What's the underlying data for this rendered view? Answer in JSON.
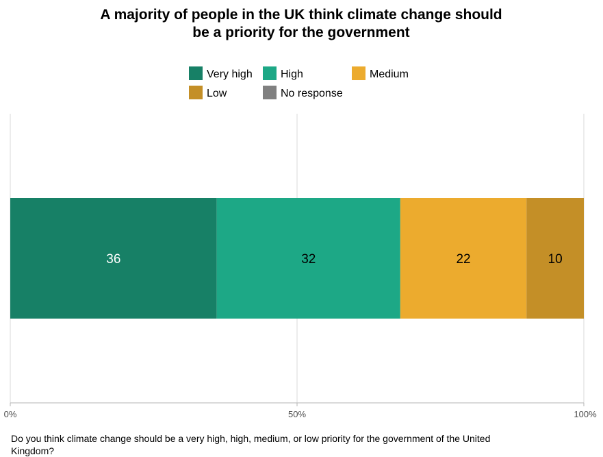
{
  "chart_data": {
    "type": "bar",
    "orientation": "horizontal",
    "stacked": true,
    "title": "A majority of people in the UK think climate change should be a priority for the government",
    "title_lines": [
      "A majority of people in the UK think climate change should",
      "be a priority for the government"
    ],
    "legend": {
      "placement": "top",
      "entries": [
        {
          "name": "Very high",
          "color": "#178066"
        },
        {
          "name": "High",
          "color": "#1da886"
        },
        {
          "name": "Medium",
          "color": "#ecab2e"
        },
        {
          "name": "Low",
          "color": "#c48f27"
        },
        {
          "name": "No response",
          "color": "#808080"
        }
      ]
    },
    "series": [
      {
        "name": "Very high",
        "value": 36,
        "label": "36",
        "color": "#178066",
        "label_color": "#ffffff"
      },
      {
        "name": "High",
        "value": 32,
        "label": "32",
        "color": "#1da886",
        "label_color": "#000000"
      },
      {
        "name": "Medium",
        "value": 22,
        "label": "22",
        "color": "#ecab2e",
        "label_color": "#000000"
      },
      {
        "name": "Low",
        "value": 10,
        "label": "10",
        "color": "#c48f27",
        "label_color": "#000000"
      },
      {
        "name": "No response",
        "value": 0,
        "label": "",
        "color": "#808080",
        "label_color": "#000000"
      }
    ],
    "x_ticks": [
      {
        "value": 0,
        "label": "0%"
      },
      {
        "value": 50,
        "label": "50%"
      },
      {
        "value": 100,
        "label": "100%"
      }
    ],
    "xlim": [
      0,
      100
    ],
    "grid": true,
    "caption_lines": [
      "Do you think climate change should be a very high, high, medium, or low priority for the government of the United",
      "Kingdom?"
    ]
  }
}
